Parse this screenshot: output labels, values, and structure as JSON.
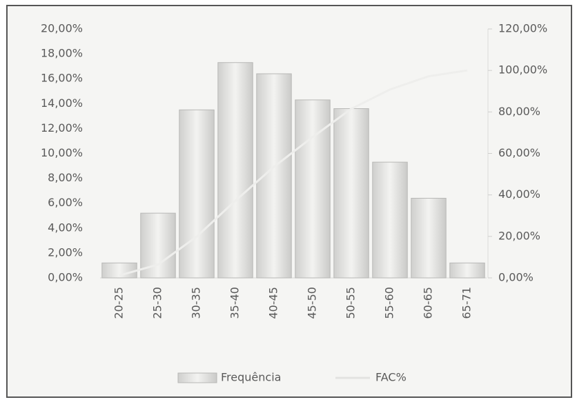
{
  "chart_data": {
    "type": "bar",
    "categories": [
      "20-25",
      "25-30",
      "30-35",
      "35-40",
      "40-45",
      "45-50",
      "50-55",
      "55-60",
      "60-65",
      "65-71"
    ],
    "series": [
      {
        "name": "Frequência",
        "type": "bar",
        "color": "#e2e2e0",
        "values": [
          1.2,
          5.2,
          13.5,
          17.3,
          16.4,
          14.3,
          13.6,
          9.3,
          6.4,
          1.2
        ]
      },
      {
        "name": "FAC%",
        "type": "line",
        "axis": "y2",
        "color": "#eeeeec",
        "values": [
          1.2,
          6.4,
          19.9,
          37.2,
          53.6,
          67.9,
          81.5,
          90.8,
          97.2,
          100
        ]
      }
    ],
    "ylim": [
      0,
      20
    ],
    "yticks": [
      {
        "value": 0,
        "label": "0,00%"
      },
      {
        "value": 2,
        "label": "2,00%"
      },
      {
        "value": 4,
        "label": "4,00%"
      },
      {
        "value": 6,
        "label": "6,00%"
      },
      {
        "value": 8,
        "label": "8,00%"
      },
      {
        "value": 10,
        "label": "10,00%"
      },
      {
        "value": 12,
        "label": "12,00%"
      },
      {
        "value": 14,
        "label": "14,00%"
      },
      {
        "value": 16,
        "label": "16,00%"
      },
      {
        "value": 18,
        "label": "18,00%"
      },
      {
        "value": 20,
        "label": "20,00%"
      }
    ],
    "y2lim": [
      0,
      120
    ],
    "y2ticks": [
      {
        "value": 0,
        "label": "0,00%"
      },
      {
        "value": 20,
        "label": "20,00%"
      },
      {
        "value": 40,
        "label": "40,00%"
      },
      {
        "value": 60,
        "label": "60,00%"
      },
      {
        "value": 80,
        "label": "80,00%"
      },
      {
        "value": 100,
        "label": "100,00%"
      },
      {
        "value": 120,
        "label": "120,00%"
      }
    ],
    "grid": false,
    "legend": "bottom"
  }
}
